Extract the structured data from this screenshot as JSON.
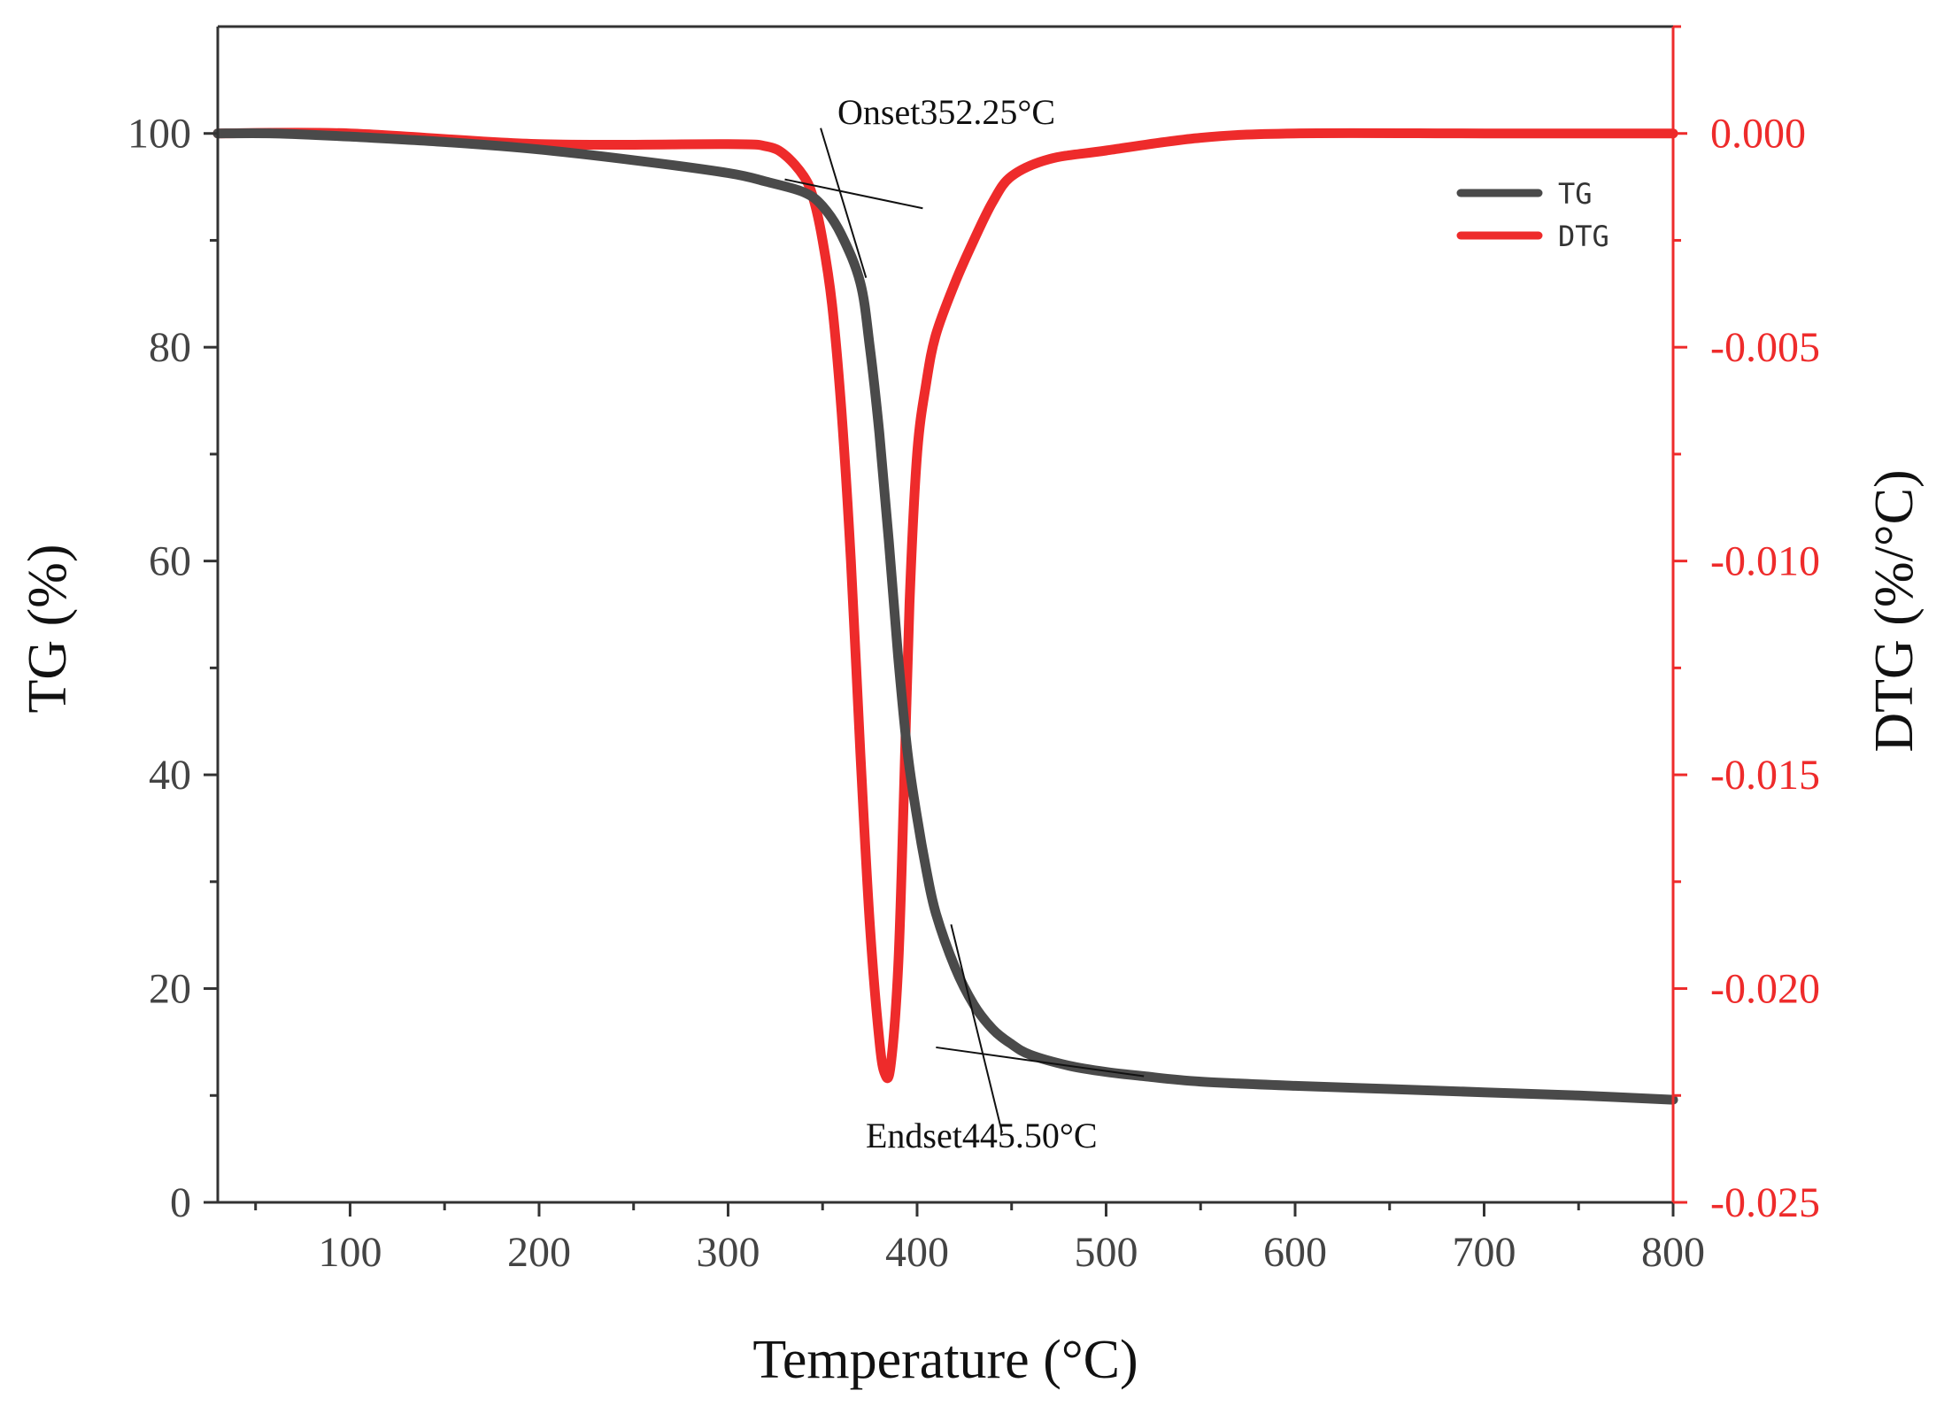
{
  "chart_data": {
    "type": "line",
    "title": "",
    "xlabel": "Temperature (°C)",
    "ylabel": "TG (%)",
    "y2label": "DTG (%/°C)",
    "xlim": [
      30,
      800
    ],
    "ylim": [
      0,
      110
    ],
    "y2lim": [
      -0.025,
      0.0025
    ],
    "x_ticks": [
      100,
      200,
      300,
      400,
      500,
      600,
      700,
      800
    ],
    "y_ticks": [
      0,
      20,
      40,
      60,
      80,
      100
    ],
    "y2_ticks": [
      0.0,
      -0.005,
      -0.01,
      -0.015,
      -0.02,
      -0.025
    ],
    "y2_tick_labels": [
      "0.000",
      "-0.005",
      "-0.010",
      "-0.015",
      "-0.020",
      "-0.025"
    ],
    "x_tick_labels": [
      "100",
      "200",
      "300",
      "400",
      "500",
      "600",
      "700",
      "800"
    ],
    "y_tick_labels": [
      "0",
      "20",
      "40",
      "60",
      "80",
      "100"
    ],
    "legend": {
      "position": "top-right",
      "entries": [
        "TG",
        "DTG"
      ]
    },
    "colors": {
      "TG": "#4a4a4a",
      "DTG": "#ee2b2b"
    },
    "series": [
      {
        "name": "TG",
        "axis": "left",
        "x": [
          30,
          60,
          100,
          150,
          200,
          250,
          300,
          320,
          340,
          350,
          360,
          370,
          375,
          380,
          385,
          390,
          395,
          400,
          405,
          410,
          420,
          430,
          440,
          450,
          460,
          480,
          500,
          520,
          550,
          600,
          650,
          700,
          750,
          800
        ],
        "y": [
          100,
          100,
          99.7,
          99.2,
          98.5,
          97.5,
          96.3,
          95.5,
          94.5,
          93.2,
          90.5,
          86,
          80,
          72,
          62,
          51,
          42,
          36,
          31,
          27,
          22,
          18.5,
          16.2,
          14.8,
          13.8,
          12.8,
          12.2,
          11.8,
          11.3,
          10.9,
          10.6,
          10.3,
          10.0,
          9.6
        ]
      },
      {
        "name": "DTG",
        "axis": "right",
        "x": [
          30,
          100,
          200,
          300,
          320,
          330,
          340,
          345,
          350,
          355,
          360,
          365,
          370,
          375,
          380,
          383,
          386,
          390,
          393,
          396,
          400,
          405,
          410,
          420,
          430,
          440,
          450,
          470,
          500,
          550,
          600,
          700,
          800
        ],
        "y": [
          0,
          0,
          -0.00025,
          -0.00025,
          -0.0003,
          -0.0005,
          -0.001,
          -0.0015,
          -0.0025,
          -0.004,
          -0.0065,
          -0.01,
          -0.0145,
          -0.0185,
          -0.0212,
          -0.022,
          -0.0218,
          -0.0195,
          -0.0155,
          -0.011,
          -0.0075,
          -0.0058,
          -0.0047,
          -0.0035,
          -0.0025,
          -0.0016,
          -0.001,
          -0.0006,
          -0.0004,
          -0.0001,
          0,
          0,
          0
        ]
      }
    ],
    "annotations": [
      {
        "text": "Onset352.25°C",
        "x": 352.25
      },
      {
        "text": "Endset445.50°C",
        "x": 445.5
      }
    ]
  }
}
